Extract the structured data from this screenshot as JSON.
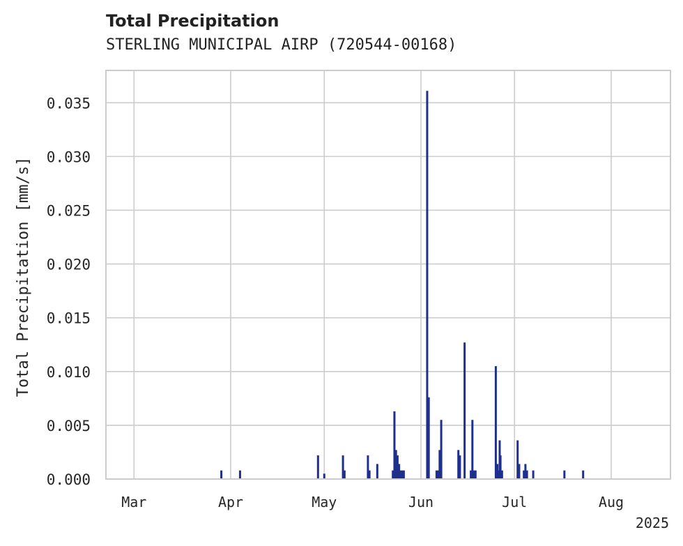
{
  "header": {
    "title": "Total Precipitation",
    "subtitle": "STERLING MUNICIPAL AIRP (720544-00168)"
  },
  "colors": {
    "bar": "#1f2f8c",
    "grid": "#cccccc",
    "axis": "#cccccc",
    "text": "#262626"
  },
  "chart_data": {
    "type": "bar",
    "title": "Total Precipitation",
    "subtitle": "STERLING MUNICIPAL AIRP (720544-00168)",
    "xlabel": "",
    "ylabel": "Total Precipitation [mm/s]",
    "xlim": [
      "2025-02-20",
      "2025-08-20"
    ],
    "ylim": [
      0,
      0.038
    ],
    "grid": true,
    "x_ticks": [
      {
        "date": "2025-03-01",
        "label": "Mar"
      },
      {
        "date": "2025-04-01",
        "label": "Apr"
      },
      {
        "date": "2025-05-01",
        "label": "May"
      },
      {
        "date": "2025-06-01",
        "label": "Jun"
      },
      {
        "date": "2025-07-01",
        "label": "Jul"
      },
      {
        "date": "2025-08-01",
        "label": "Aug"
      }
    ],
    "x_offset_label": "2025",
    "y_ticks": [
      0.0,
      0.005,
      0.01,
      0.015,
      0.02,
      0.025,
      0.03,
      0.035
    ],
    "y_tick_labels": [
      "0.000",
      "0.005",
      "0.010",
      "0.015",
      "0.020",
      "0.025",
      "0.030",
      "0.035"
    ],
    "series": [
      {
        "name": "Total Precipitation",
        "points": [
          {
            "date": "2025-03-29",
            "value": 0.0008
          },
          {
            "date": "2025-04-04",
            "value": 0.0008
          },
          {
            "date": "2025-04-29",
            "value": 0.0022
          },
          {
            "date": "2025-05-01",
            "value": 0.0005
          },
          {
            "date": "2025-05-07",
            "value": 0.0022
          },
          {
            "date": "2025-05-07T12",
            "value": 0.0008
          },
          {
            "date": "2025-05-15",
            "value": 0.0022
          },
          {
            "date": "2025-05-15T12",
            "value": 0.0008
          },
          {
            "date": "2025-05-18",
            "value": 0.0014
          },
          {
            "date": "2025-05-23",
            "value": 0.0008
          },
          {
            "date": "2025-05-23T12",
            "value": 0.0063
          },
          {
            "date": "2025-05-24",
            "value": 0.0027
          },
          {
            "date": "2025-05-24T12",
            "value": 0.0022
          },
          {
            "date": "2025-05-25",
            "value": 0.0014
          },
          {
            "date": "2025-05-25T12",
            "value": 0.0008
          },
          {
            "date": "2025-05-26",
            "value": 0.0008
          },
          {
            "date": "2025-05-26T12",
            "value": 0.0008
          },
          {
            "date": "2025-06-03",
            "value": 0.0361
          },
          {
            "date": "2025-06-03T12",
            "value": 0.0076
          },
          {
            "date": "2025-06-06",
            "value": 0.0008
          },
          {
            "date": "2025-06-06T12",
            "value": 0.0008
          },
          {
            "date": "2025-06-07",
            "value": 0.0027
          },
          {
            "date": "2025-06-07T12",
            "value": 0.0055
          },
          {
            "date": "2025-06-13",
            "value": 0.0027
          },
          {
            "date": "2025-06-13T12",
            "value": 0.0022
          },
          {
            "date": "2025-06-15",
            "value": 0.0127
          },
          {
            "date": "2025-06-17",
            "value": 0.0008
          },
          {
            "date": "2025-06-17T12",
            "value": 0.0055
          },
          {
            "date": "2025-06-18",
            "value": 0.0008
          },
          {
            "date": "2025-06-18T12",
            "value": 0.0008
          },
          {
            "date": "2025-06-25",
            "value": 0.0105
          },
          {
            "date": "2025-06-25T12",
            "value": 0.0014
          },
          {
            "date": "2025-06-26",
            "value": 0.0008
          },
          {
            "date": "2025-06-26T06",
            "value": 0.0036
          },
          {
            "date": "2025-06-26T12",
            "value": 0.0022
          },
          {
            "date": "2025-06-27",
            "value": 0.0008
          },
          {
            "date": "2025-07-02",
            "value": 0.0036
          },
          {
            "date": "2025-07-02T12",
            "value": 0.0014
          },
          {
            "date": "2025-07-04",
            "value": 0.0008
          },
          {
            "date": "2025-07-04T12",
            "value": 0.0014
          },
          {
            "date": "2025-07-05",
            "value": 0.0008
          },
          {
            "date": "2025-07-07",
            "value": 0.0008
          },
          {
            "date": "2025-07-17",
            "value": 0.0008
          },
          {
            "date": "2025-07-23",
            "value": 0.0008
          }
        ]
      }
    ]
  }
}
